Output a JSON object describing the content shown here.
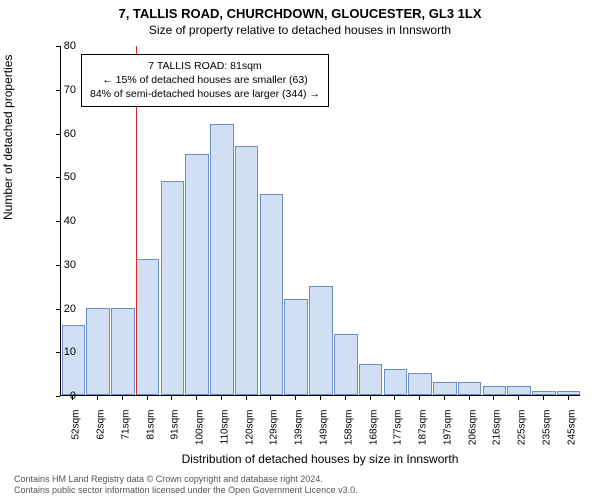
{
  "title_main": "7, TALLIS ROAD, CHURCHDOWN, GLOUCESTER, GL3 1LX",
  "title_sub": "Size of property relative to detached houses in Innsworth",
  "ylabel": "Number of detached properties",
  "xlabel": "Distribution of detached houses by size in Innsworth",
  "footer_line1": "Contains HM Land Registry data © Crown copyright and database right 2024.",
  "footer_line2": "Contains public sector information licensed under the Open Government Licence v3.0.",
  "chart": {
    "type": "histogram",
    "ylim": [
      0,
      80
    ],
    "yticks": [
      0,
      10,
      20,
      30,
      40,
      50,
      60,
      70,
      80
    ],
    "xtick_labels": [
      "52sqm",
      "62sqm",
      "71sqm",
      "81sqm",
      "91sqm",
      "100sqm",
      "110sqm",
      "120sqm",
      "129sqm",
      "139sqm",
      "149sqm",
      "158sqm",
      "168sqm",
      "177sqm",
      "187sqm",
      "197sqm",
      "206sqm",
      "216sqm",
      "225sqm",
      "235sqm",
      "245sqm"
    ],
    "values": [
      16,
      20,
      20,
      31,
      49,
      55,
      62,
      57,
      46,
      22,
      25,
      14,
      7,
      6,
      5,
      3,
      3,
      2,
      2,
      1,
      1
    ],
    "bar_fill": "#d0dff2",
    "bar_border": "#6a8ec5",
    "background_color": "#ffffff",
    "tick_fontsize": 10,
    "label_fontsize": 12,
    "title_fontsize": 13
  },
  "reference": {
    "index": 3,
    "line_color": "#d22727",
    "box_border": "#000000",
    "box_bg": "#ffffff",
    "line1": "7 TALLIS ROAD: 81sqm",
    "line2": "← 15% of detached houses are smaller (63)",
    "line3": "84% of semi-detached houses are larger (344) →"
  }
}
